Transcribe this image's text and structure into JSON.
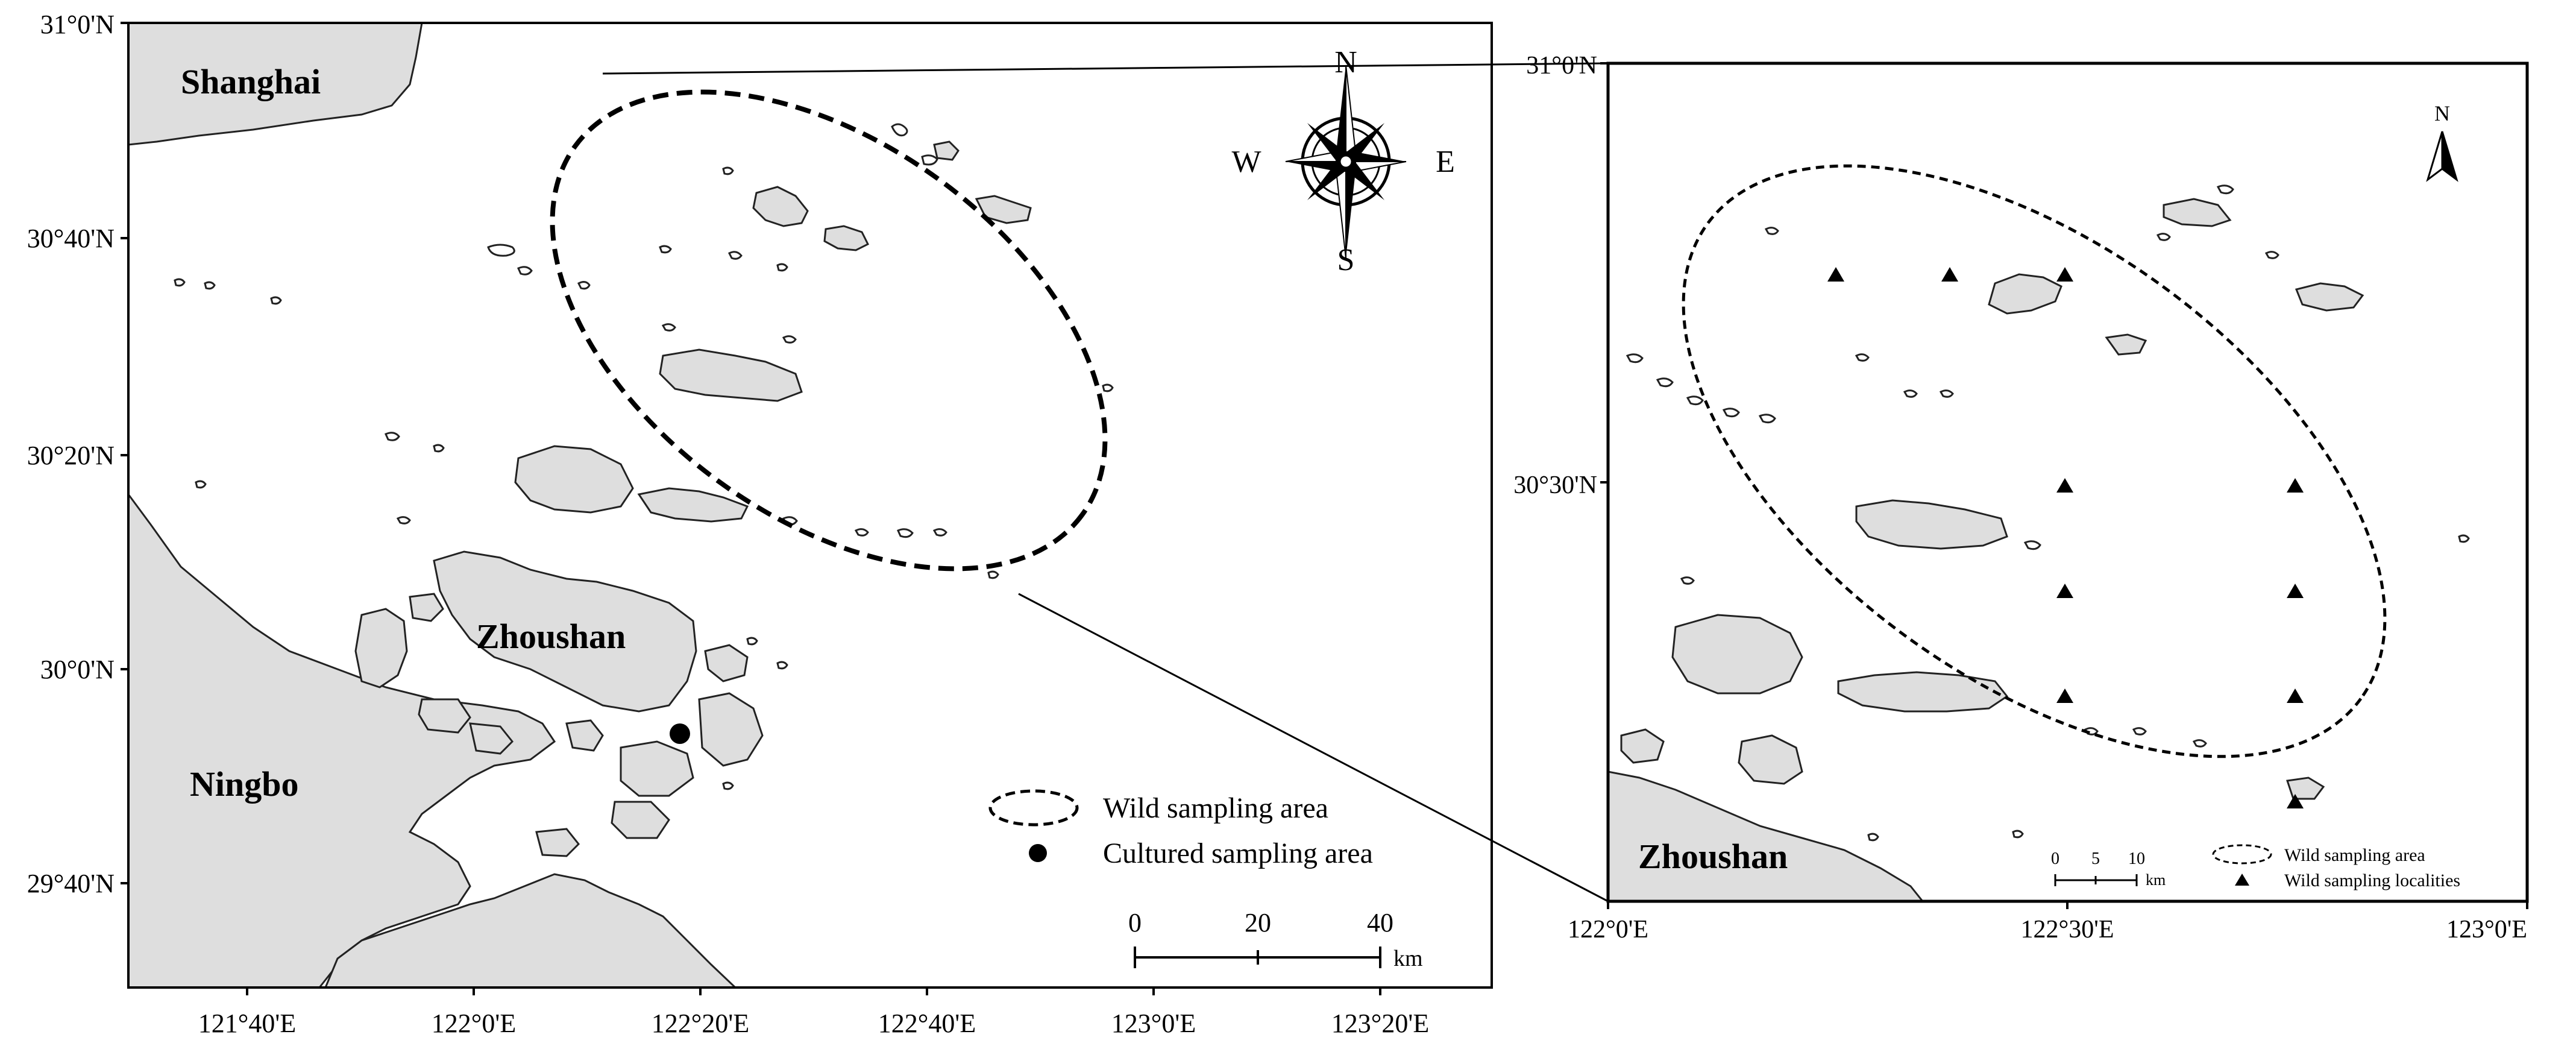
{
  "main_map": {
    "lat_labels": [
      "31°0'N",
      "30°40'N",
      "30°20'N",
      "30°0'N",
      "29°40'N"
    ],
    "lon_labels": [
      "121°40'E",
      "122°0'E",
      "122°20'E",
      "122°40'E",
      "123°0'E",
      "123°20'E"
    ],
    "places": {
      "shanghai": "Shanghai",
      "zhoushan": "Zhoushan",
      "ningbo": "Ningbo"
    },
    "compass": {
      "n": "N",
      "s": "S",
      "e": "E",
      "w": "W"
    },
    "legend": {
      "wild": "Wild sampling area",
      "cultured": "Cultured sampling area"
    },
    "scalebar": {
      "ticks": [
        "0",
        "20",
        "40"
      ],
      "unit": "km"
    }
  },
  "inset_map": {
    "lat_labels": [
      "31°0'N",
      "30°30'N"
    ],
    "lon_labels": [
      "122°0'E",
      "122°30'E",
      "123°0'E"
    ],
    "places": {
      "zhoushan": "Zhoushan"
    },
    "north": "N",
    "legend": {
      "wild_area": "Wild sampling area",
      "wild_localities": "Wild sampling localities"
    },
    "scalebar": {
      "ticks": [
        "0",
        "5",
        "10"
      ],
      "unit": "km"
    }
  },
  "colors": {
    "land": "#dedede",
    "outline": "#222222",
    "marker": "#000000"
  }
}
